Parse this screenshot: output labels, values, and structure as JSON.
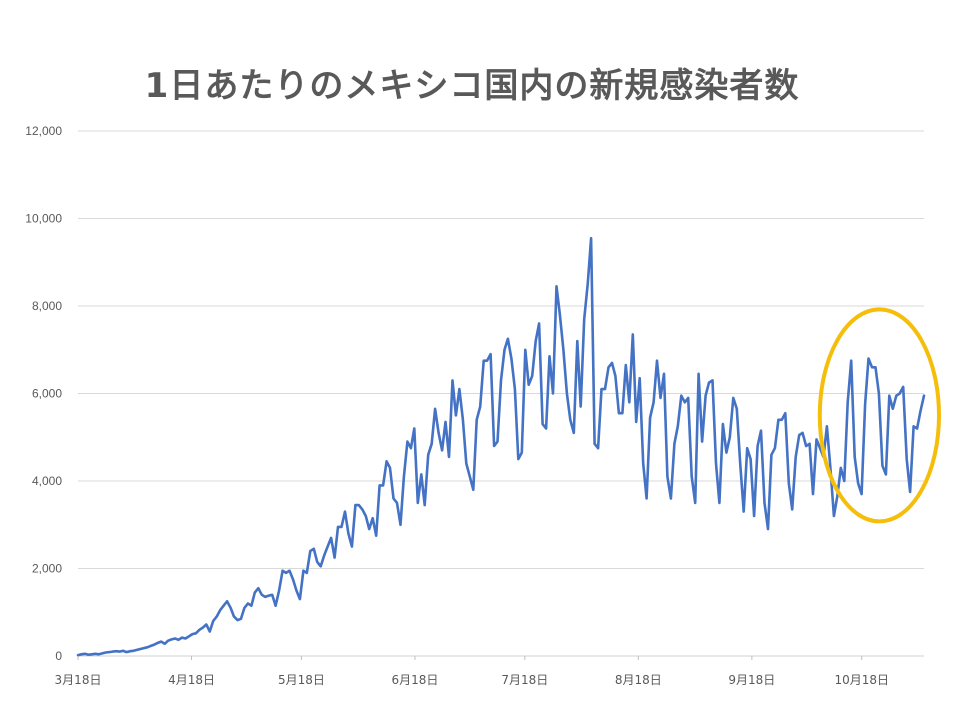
{
  "chart_data": {
    "type": "line",
    "title": "1日あたりのメキシコ国内の新規感染者数",
    "xlabel": "",
    "ylabel": "",
    "ylim": [
      0,
      12000
    ],
    "y_ticks": [
      "0",
      "2,000",
      "4,000",
      "6,000",
      "8,000",
      "10,000",
      "12,000"
    ],
    "x_ticks": [
      "3月18日",
      "4月18日",
      "5月18日",
      "6月18日",
      "7月18日",
      "8月18日",
      "9月18日",
      "10月18日"
    ],
    "grid": "horizontal",
    "legend": "none",
    "series": [
      {
        "color": "#4472C4",
        "x_start": "2020-03-18",
        "x_end": "2020-11-04",
        "values": [
          20,
          40,
          50,
          30,
          40,
          50,
          40,
          60,
          80,
          90,
          100,
          110,
          100,
          120,
          90,
          110,
          120,
          140,
          160,
          180,
          200,
          230,
          260,
          300,
          330,
          280,
          350,
          380,
          400,
          370,
          420,
          400,
          450,
          500,
          520,
          600,
          650,
          720,
          560,
          800,
          900,
          1050,
          1150,
          1250,
          1100,
          900,
          820,
          850,
          1100,
          1200,
          1150,
          1450,
          1550,
          1400,
          1350,
          1380,
          1400,
          1150,
          1500,
          1950,
          1900,
          1950,
          1750,
          1500,
          1300,
          1950,
          1900,
          2400,
          2450,
          2150,
          2050,
          2300,
          2500,
          2700,
          2250,
          2950,
          2950,
          3300,
          2800,
          2500,
          3450,
          3450,
          3350,
          3200,
          2900,
          3150,
          2750,
          3900,
          3900,
          4450,
          4300,
          3600,
          3500,
          3000,
          4100,
          4900,
          4750,
          5200,
          3500,
          4150,
          3450,
          4600,
          4850,
          5650,
          5100,
          4700,
          5350,
          4550,
          6300,
          5500,
          6100,
          5400,
          4400,
          4100,
          3800,
          5400,
          5700,
          6750,
          6750,
          6900,
          4800,
          4900,
          6300,
          7000,
          7250,
          6800,
          6100,
          4500,
          4650,
          7000,
          6200,
          6400,
          7200,
          7600,
          5300,
          5200,
          6850,
          6000,
          8450,
          7800,
          7000,
          6000,
          5400,
          5100,
          7200,
          5700,
          7700,
          8500,
          9550,
          4850,
          4750,
          6100,
          6100,
          6600,
          6700,
          6400,
          5550,
          5550,
          6650,
          5800,
          7350,
          5350,
          6350,
          4400,
          3600,
          5450,
          5800,
          6750,
          5900,
          6450,
          4100,
          3600,
          4850,
          5250,
          5950,
          5800,
          5900,
          4100,
          3500,
          6450,
          4900,
          5950,
          6250,
          6300,
          4400,
          3500,
          5300,
          4650,
          5000,
          5900,
          5650,
          4400,
          3300,
          4750,
          4500,
          3200,
          4800,
          5150,
          3500,
          2900,
          4600,
          4750,
          5400,
          5400,
          5550,
          3950,
          3350,
          4550,
          5050,
          5100,
          4800,
          4850,
          3700,
          4950,
          4750,
          4550,
          5250,
          4300,
          3200,
          3650,
          4300,
          4000,
          5800,
          6750,
          4550,
          3950,
          3700,
          5750,
          6800,
          6600,
          6600,
          6000,
          4350,
          4150,
          5950,
          5650,
          5950,
          6000,
          6150,
          4500,
          3750,
          5250,
          5200,
          5600,
          5950
        ]
      }
    ],
    "annotations": [
      {
        "shape": "ellipse",
        "color": "#F5BE0A",
        "around": "2020-10-09 to 2020-11-04"
      }
    ]
  }
}
